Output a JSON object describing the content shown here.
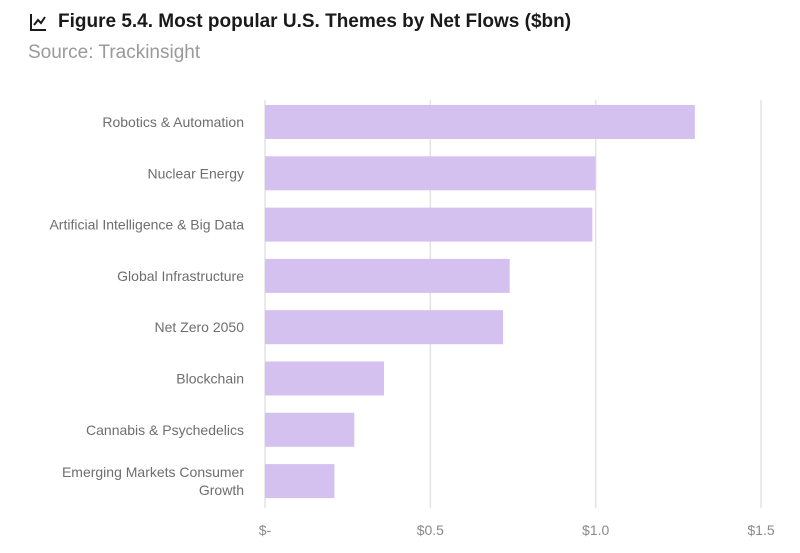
{
  "header": {
    "title": "Figure 5.4. Most popular U.S. Themes by Net Flows ($bn)",
    "subtitle": "Source: Trackinsight",
    "icon": "trend-chart-icon"
  },
  "colors": {
    "bar": "#d5c1f0",
    "grid": "#e3e3e3",
    "label": "#6e6e6e",
    "tick": "#8a8a8a"
  },
  "chart_data": {
    "type": "bar",
    "orientation": "horizontal",
    "title": "Figure 5.4. Most popular U.S. Themes by Net Flows ($bn)",
    "subtitle": "Source: Trackinsight",
    "categories": [
      [
        "Robotics & Automation"
      ],
      [
        "Nuclear Energy"
      ],
      [
        "Artificial Intelligence & Big Data"
      ],
      [
        "Global Infrastructure"
      ],
      [
        "Net Zero 2050"
      ],
      [
        "Blockchain"
      ],
      [
        "Cannabis & Psychedelics"
      ],
      [
        "Emerging Markets Consumer",
        "Growth"
      ]
    ],
    "values": [
      1.3,
      1.0,
      0.99,
      0.74,
      0.72,
      0.36,
      0.27,
      0.21
    ],
    "xlim": [
      0,
      1.5
    ],
    "xticks": [
      0,
      0.5,
      1.0,
      1.5
    ],
    "xtick_labels": [
      "$-",
      "$0.5",
      "$1.0",
      "$1.5"
    ],
    "grid": true,
    "legend": "none"
  }
}
